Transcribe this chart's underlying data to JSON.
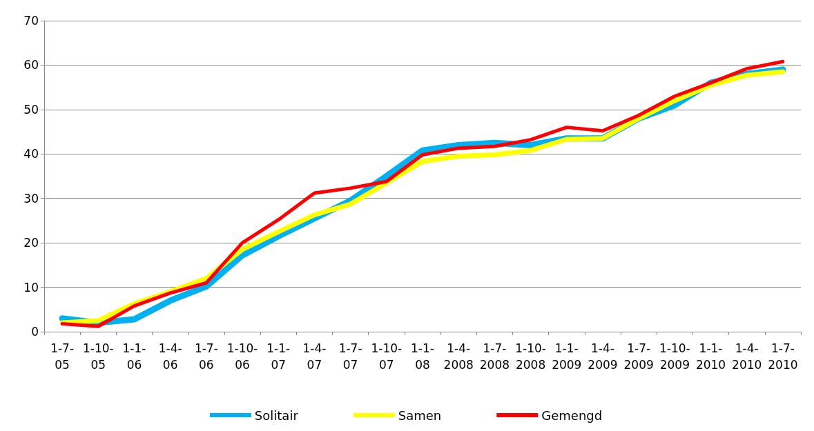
{
  "chart_data": {
    "type": "line",
    "categories": [
      "1-7-05",
      "1-10-05",
      "1-1-06",
      "1-4-06",
      "1-7-06",
      "1-10-06",
      "1-1-07",
      "1-4-07",
      "1-7-07",
      "1-10-07",
      "1-1-08",
      "1-4-2008",
      "1-7-2008",
      "1-10-2008",
      "1-1-2009",
      "1-4-2009",
      "1-7-2009",
      "1-10-2009",
      "1-1-2010",
      "1-4-2010",
      "1-7-2010"
    ],
    "series": [
      {
        "name": "Solitair",
        "color": "#00b0f0",
        "values": [
          3,
          2,
          2.8,
          7,
          10.2,
          17.2,
          21.5,
          25.5,
          29.5,
          35,
          40.8,
          42,
          42.5,
          42,
          43.5,
          43.5,
          48,
          51,
          56,
          58,
          59
        ]
      },
      {
        "name": "Samen",
        "color": "#ffff00",
        "values": [
          2,
          2.5,
          6.3,
          9,
          12,
          18.5,
          22.5,
          26.3,
          28.7,
          33.5,
          38.3,
          39.5,
          39.8,
          40.8,
          43.3,
          43.5,
          48,
          52,
          55.5,
          57.7,
          58.5
        ]
      },
      {
        "name": "Gemengd",
        "color": "#ff0000",
        "values": [
          1.8,
          1.2,
          5.8,
          8.7,
          11,
          20,
          25.2,
          31.2,
          32.3,
          33.8,
          39.8,
          41.3,
          41.7,
          43.2,
          46,
          45.2,
          48.7,
          53,
          56,
          59.2,
          60.8
        ]
      }
    ],
    "ylim": [
      0,
      70
    ],
    "yticks": [
      0,
      10,
      20,
      30,
      40,
      50,
      60,
      70
    ],
    "grid": "y",
    "legend": "bottom",
    "marker": "none",
    "line_style": "solid"
  }
}
